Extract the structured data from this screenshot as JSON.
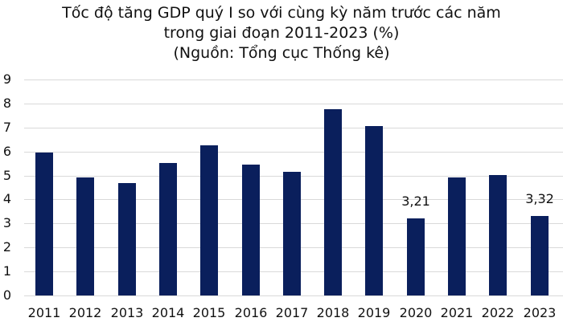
{
  "title": {
    "line1": "Tốc độ tăng GDP quý I so với cùng kỳ năm trước các năm",
    "line2": "trong giai đoạn 2011-2023 (%)",
    "line3": "(Nguồn: Tổng cục Thống kê)"
  },
  "colors": {
    "bar": "#0a1f5c",
    "grid": "#d9d9d9"
  },
  "chart_data": {
    "type": "bar",
    "title": "Tốc độ tăng GDP quý I so với cùng kỳ năm trước các năm trong giai đoạn 2011-2023 (%)",
    "subtitle": "(Nguồn: Tổng cục Thống kê)",
    "xlabel": "",
    "ylabel": "",
    "ylim": [
      0,
      9
    ],
    "yticks": [
      "0",
      "1",
      "2",
      "3",
      "4",
      "5",
      "6",
      "7",
      "8",
      "9"
    ],
    "grid": true,
    "legend": null,
    "categories": [
      "2011",
      "2012",
      "2013",
      "2014",
      "2015",
      "2016",
      "2017",
      "2018",
      "2019",
      "2020",
      "2021",
      "2022",
      "2023"
    ],
    "values": [
      5.96,
      4.93,
      4.68,
      5.52,
      6.24,
      5.47,
      5.15,
      7.75,
      7.07,
      3.21,
      4.91,
      5.02,
      3.32
    ],
    "data_labels": {
      "2020": "3,21",
      "2023": "3,32"
    }
  }
}
